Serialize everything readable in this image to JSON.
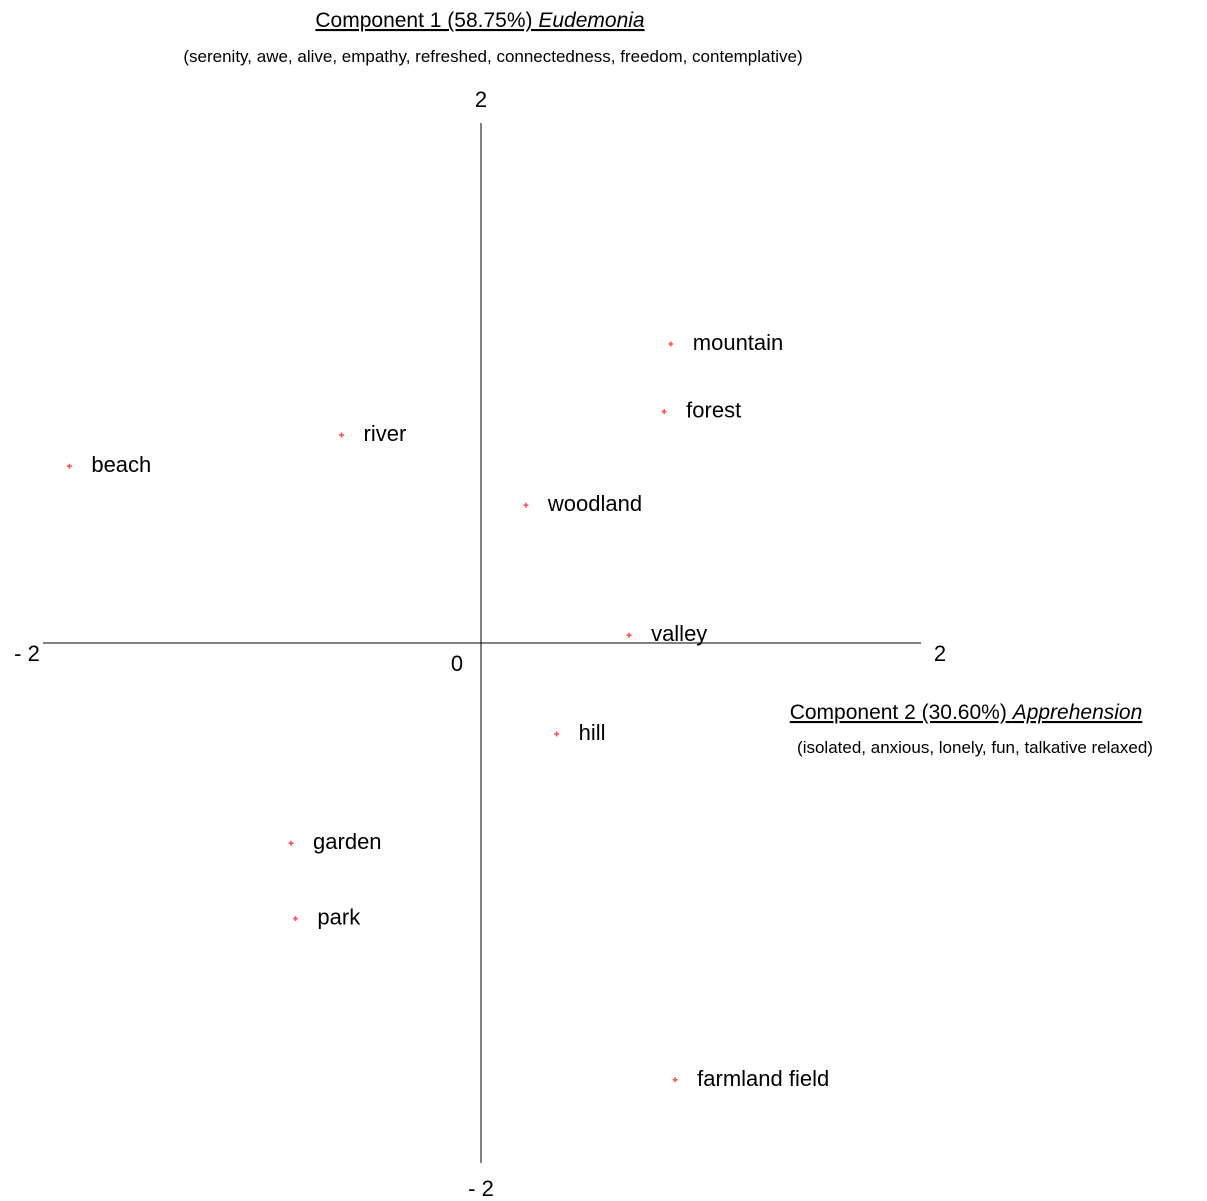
{
  "chart_data": {
    "type": "scatter",
    "x_axis": {
      "name": "Component 2 (30.60%)",
      "name_italic": "Apprehension",
      "descriptors": "(isolated, anxious, lonely, fun, talkative relaxed)",
      "range": [
        -2,
        2
      ],
      "min_label": "- 2",
      "max_label": "2"
    },
    "y_axis": {
      "name": "Component 1 (58.75%)",
      "name_italic": "Eudemonia",
      "descriptors": "(serenity, awe, alive,  empathy, refreshed, connectedness, freedom, contemplative)",
      "range": [
        -2,
        2
      ],
      "min_label": "- 2",
      "max_label": "2"
    },
    "origin_label": "0",
    "marker_color": "#ff5555",
    "points": [
      {
        "label": "mountain",
        "x": 0.86,
        "y": 1.15
      },
      {
        "label": "forest",
        "x": 0.83,
        "y": 0.89
      },
      {
        "label": "river",
        "x": -0.64,
        "y": 0.8
      },
      {
        "label": "beach",
        "x": -1.88,
        "y": 0.68
      },
      {
        "label": "woodland",
        "x": 0.2,
        "y": 0.53
      },
      {
        "label": "valley",
        "x": 0.67,
        "y": 0.03
      },
      {
        "label": "hill",
        "x": 0.34,
        "y": -0.35
      },
      {
        "label": "garden",
        "x": -0.87,
        "y": -0.77
      },
      {
        "label": "park",
        "x": -0.85,
        "y": -1.06
      },
      {
        "label": "farmland field",
        "x": 0.88,
        "y": -1.68
      }
    ]
  }
}
